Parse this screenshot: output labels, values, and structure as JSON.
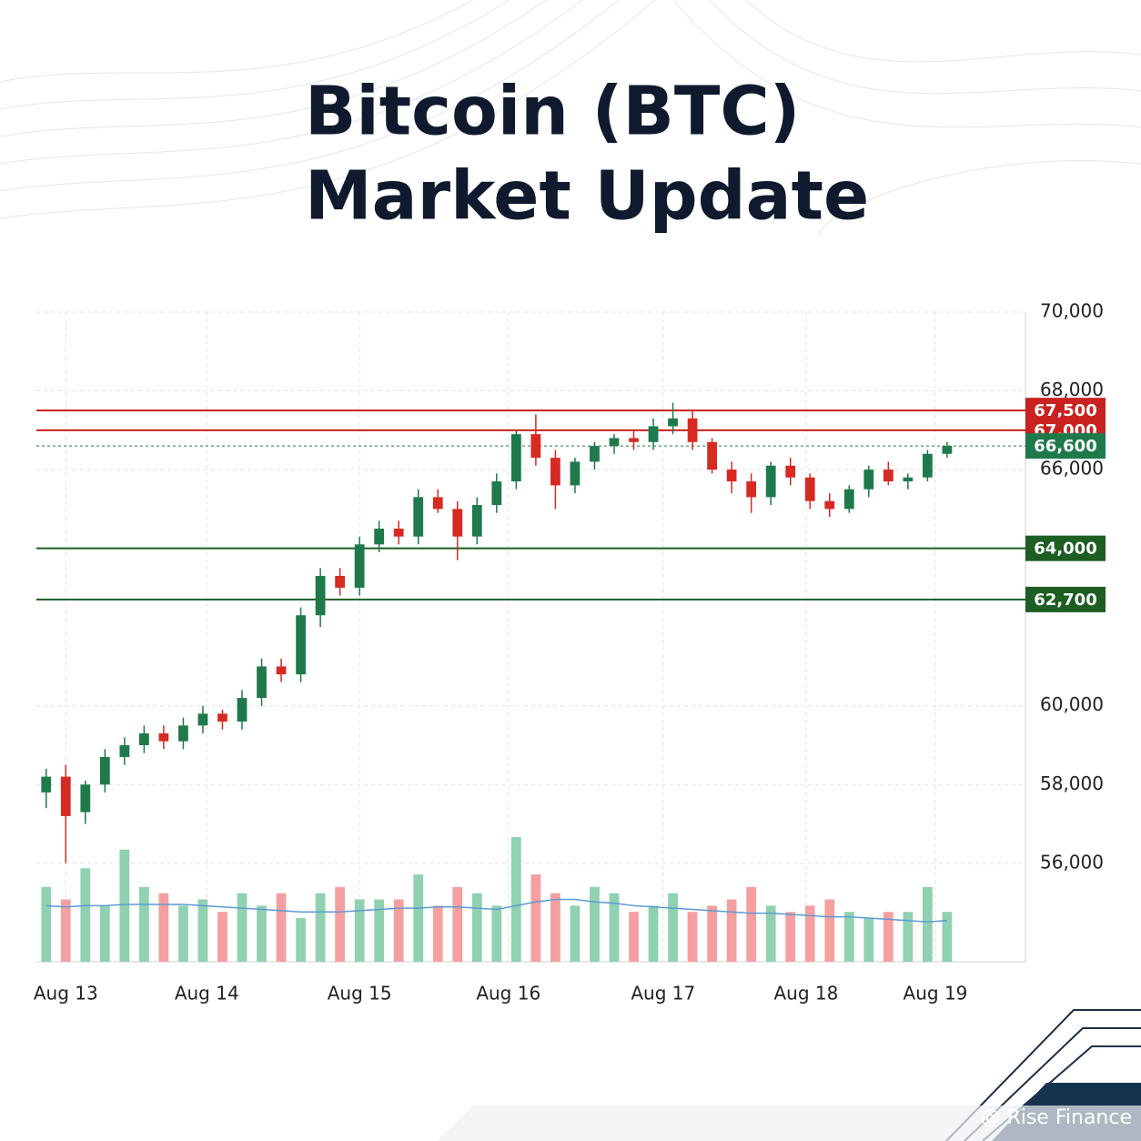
{
  "chart_data": {
    "type": "candlestick",
    "title": [
      "Bitcoin (BTC)",
      "Market Update"
    ],
    "watermark": "@ Rise Finance",
    "up_color": "#1e7a4a",
    "down_color": "#d62a22",
    "volume_up_color": "#8fd1b0",
    "volume_down_color": "#f4a0a0",
    "ma_color": "#5b9bd5",
    "grid": true,
    "xlim": [
      -0.5,
      50
    ],
    "xticks": [
      {
        "value": 1,
        "label": "Aug 13"
      },
      {
        "value": 8.2,
        "label": "Aug 14"
      },
      {
        "value": 16,
        "label": "Aug 15"
      },
      {
        "value": 23.6,
        "label": "Aug 16"
      },
      {
        "value": 31.5,
        "label": "Aug 17"
      },
      {
        "value": 38.8,
        "label": "Aug 18"
      },
      {
        "value": 45.4,
        "label": "Aug 19"
      }
    ],
    "ylim": [
      53500,
      70000
    ],
    "yticks": [
      {
        "value": 56000,
        "label": "56,000"
      },
      {
        "value": 58000,
        "label": "58,000"
      },
      {
        "value": 60000,
        "label": "60,000"
      },
      {
        "value": 66000,
        "label": "66,000"
      },
      {
        "value": 68000,
        "label": "68,000"
      },
      {
        "value": 70000,
        "label": "70,000"
      }
    ],
    "levels": [
      {
        "value": 67500,
        "label": "67,500",
        "color": "#c8211f",
        "style": "solid"
      },
      {
        "value": 67000,
        "label": "67,000",
        "color": "#c8211f",
        "style": "solid"
      },
      {
        "value": 66600,
        "label": "66,600",
        "color": "#1e7a4a",
        "style": "dotted"
      },
      {
        "value": 64000,
        "label": "64,000",
        "color": "#1d5e22",
        "style": "solid"
      },
      {
        "value": 62700,
        "label": "62,700",
        "color": "#1d5e22",
        "style": "solid"
      }
    ],
    "open": [
      57800,
      58200,
      57300,
      58000,
      58700,
      59000,
      59300,
      59100,
      59500,
      59800,
      59600,
      60200,
      61000,
      60800,
      62300,
      63300,
      63000,
      64100,
      64500,
      64300,
      65300,
      65000,
      64300,
      65100,
      65700,
      66900,
      66300,
      65600,
      66200,
      66600,
      66800,
      66700,
      67100,
      67300,
      66700,
      66000,
      65700,
      65300,
      66100,
      65800,
      65200,
      65000,
      65500,
      66000,
      65700,
      65800,
      66400
    ],
    "high": [
      58400,
      58500,
      58100,
      58900,
      59200,
      59500,
      59500,
      59700,
      60000,
      59900,
      60400,
      61200,
      61200,
      62500,
      63500,
      63500,
      64300,
      64700,
      64700,
      65500,
      65500,
      65200,
      65300,
      65900,
      67000,
      67400,
      66500,
      66300,
      66700,
      66900,
      67000,
      67300,
      67700,
      67500,
      66800,
      66200,
      65900,
      66200,
      66300,
      65900,
      65400,
      65600,
      66100,
      66200,
      65900,
      66500,
      66700
    ],
    "low": [
      57400,
      56000,
      57000,
      57800,
      58500,
      58800,
      58900,
      58900,
      59300,
      59400,
      59400,
      60000,
      60600,
      60600,
      62000,
      62800,
      62800,
      63900,
      64100,
      64100,
      64900,
      63700,
      64100,
      64900,
      65500,
      66100,
      65000,
      65400,
      66000,
      66400,
      66500,
      66500,
      66900,
      66500,
      65900,
      65400,
      64900,
      65100,
      65600,
      65000,
      64800,
      64900,
      65300,
      65600,
      65500,
      65700,
      66300
    ],
    "close": [
      58200,
      57200,
      58000,
      58700,
      59000,
      59300,
      59100,
      59500,
      59800,
      59600,
      60200,
      61000,
      60800,
      62300,
      63300,
      63000,
      64100,
      64500,
      64300,
      65300,
      65000,
      64300,
      65100,
      65700,
      66900,
      66300,
      65600,
      66200,
      66600,
      66800,
      66700,
      67100,
      67300,
      66700,
      66000,
      65700,
      65300,
      66100,
      65800,
      65200,
      65000,
      65500,
      66000,
      65700,
      65800,
      66400,
      66600
    ],
    "volume_lim": [
      0,
      100
    ],
    "volume": [
      60,
      50,
      75,
      45,
      90,
      60,
      55,
      45,
      50,
      40,
      55,
      45,
      55,
      35,
      55,
      60,
      50,
      50,
      50,
      70,
      45,
      60,
      55,
      45,
      100,
      70,
      55,
      45,
      60,
      55,
      40,
      45,
      55,
      40,
      45,
      50,
      60,
      45,
      40,
      45,
      50,
      40,
      35,
      40,
      40,
      60,
      40
    ],
    "volume_ma": [
      45,
      44,
      45,
      45,
      46,
      46,
      46,
      46,
      45,
      44,
      43,
      42,
      41,
      40,
      40,
      40,
      41,
      42,
      43,
      43,
      44,
      44,
      43,
      42,
      45,
      48,
      50,
      50,
      48,
      47,
      45,
      44,
      43,
      42,
      41,
      40,
      39,
      39,
      38,
      37,
      36,
      36,
      35,
      34,
      33,
      32,
      33
    ]
  }
}
